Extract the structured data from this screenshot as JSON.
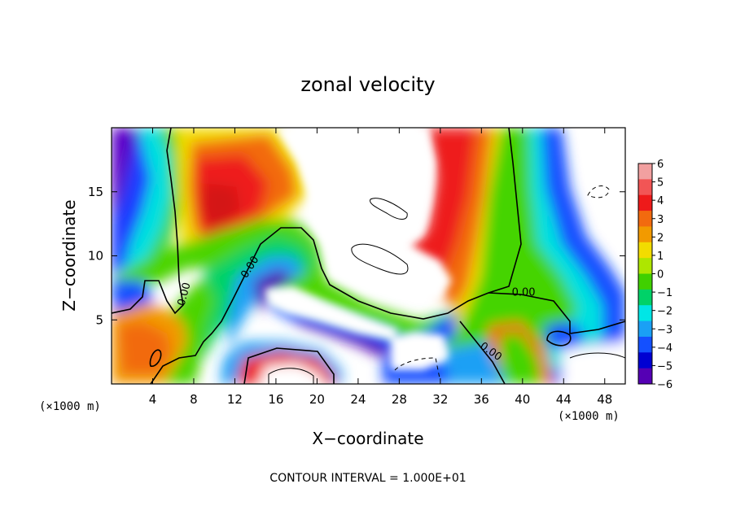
{
  "chart_data": {
    "type": "heatmap",
    "title": "zonal velocity",
    "xlabel": "X−coordinate",
    "ylabel": "Z−coordinate",
    "x_unit": "(×1000 m)",
    "y_unit": "(×1000 m)",
    "xlim": [
      0,
      50
    ],
    "ylim": [
      0,
      20
    ],
    "x_ticks": [
      4,
      8,
      12,
      16,
      20,
      24,
      28,
      32,
      36,
      40,
      44,
      48
    ],
    "x_tick_labels": [
      "4",
      "8",
      "12",
      "16",
      "20",
      "24",
      "28",
      "32",
      "36",
      "40",
      "44",
      "48"
    ],
    "y_ticks": [
      5,
      10,
      15
    ],
    "y_tick_labels": [
      "5",
      "10",
      "15"
    ],
    "colorbar": {
      "min": -6,
      "max": 6,
      "ticks": [
        6,
        5,
        4,
        3,
        2,
        1,
        0,
        -1,
        -2,
        -3,
        -4,
        -5,
        -6
      ],
      "tick_labels": [
        "6",
        "5",
        "4",
        "3",
        "2",
        "1",
        "0",
        "−1",
        "−2",
        "−3",
        "−4",
        "−5",
        "−6"
      ],
      "colors": [
        "#f2a0a0",
        "#f25555",
        "#ee1a1a",
        "#f26a0f",
        "#f29a00",
        "#f2dc00",
        "#aee600",
        "#40d000",
        "#00d268",
        "#00e6e6",
        "#1aa0f5",
        "#1450ff",
        "#0000d2",
        "#5500b4"
      ],
      "out_of_range_color": "#ffffff"
    },
    "contour_lines": [
      {
        "label": "0.00",
        "x": 13.5,
        "y": 9.1,
        "angle": -58
      },
      {
        "label": "0.00",
        "x": 7.1,
        "y": 7.0,
        "angle": -75
      },
      {
        "label": "0.00",
        "x": 40.1,
        "y": 7.1,
        "angle": 0
      },
      {
        "label": "0.00",
        "x": 36.9,
        "y": 2.5,
        "angle": 35
      }
    ],
    "note": "CONTOUR INTERVAL = 1.000E+01"
  }
}
